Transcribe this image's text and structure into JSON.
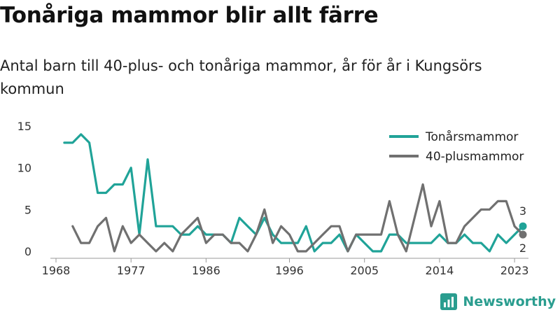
{
  "title": "Tonåriga mammor blir allt färre",
  "subtitle": "Antal barn till 40-plus- och tonåriga mammor, år för år i Kungsörs kommun",
  "brand": {
    "name": "Newsworthy",
    "color": "#2a9d8f"
  },
  "chart_data": {
    "type": "line",
    "xlabel": "",
    "ylabel": "",
    "xlim": [
      1968,
      2024
    ],
    "ylim": [
      0,
      15
    ],
    "x_ticks": [
      1968,
      1977,
      1986,
      1996,
      2005,
      2014,
      2023
    ],
    "y_ticks": [
      0,
      5,
      10,
      15
    ],
    "grid": false,
    "legend_position": "top-right",
    "series": [
      {
        "name": "Tonårsmammor",
        "color": "#20a398",
        "x": [
          1969,
          1970,
          1971,
          1972,
          1973,
          1974,
          1975,
          1976,
          1977,
          1978,
          1979,
          1980,
          1981,
          1982,
          1983,
          1984,
          1985,
          1986,
          1987,
          1988,
          1989,
          1990,
          1991,
          1992,
          1993,
          1994,
          1995,
          1996,
          1997,
          1998,
          1999,
          2000,
          2001,
          2002,
          2003,
          2004,
          2005,
          2006,
          2007,
          2008,
          2009,
          2010,
          2011,
          2012,
          2013,
          2014,
          2015,
          2016,
          2017,
          2018,
          2019,
          2020,
          2021,
          2022,
          2023,
          2024
        ],
        "values": [
          13,
          13,
          14,
          13,
          7,
          7,
          8,
          8,
          10,
          2,
          11,
          3,
          3,
          3,
          2,
          2,
          3,
          2,
          2,
          2,
          1,
          4,
          3,
          2,
          4,
          2,
          1,
          1,
          1,
          3,
          0,
          1,
          1,
          2,
          0,
          2,
          1,
          0,
          0,
          2,
          2,
          1,
          1,
          1,
          1,
          2,
          1,
          1,
          2,
          1,
          1,
          0,
          2,
          1,
          2,
          3
        ],
        "end_label": "3"
      },
      {
        "name": "40-plusmammor",
        "color": "#707070",
        "x": [
          1970,
          1971,
          1972,
          1973,
          1974,
          1975,
          1976,
          1977,
          1978,
          1979,
          1980,
          1981,
          1982,
          1983,
          1984,
          1985,
          1986,
          1987,
          1988,
          1989,
          1990,
          1991,
          1992,
          1993,
          1994,
          1995,
          1996,
          1997,
          1998,
          1999,
          2000,
          2001,
          2002,
          2003,
          2004,
          2005,
          2006,
          2007,
          2008,
          2009,
          2010,
          2011,
          2012,
          2013,
          2014,
          2015,
          2016,
          2017,
          2018,
          2019,
          2020,
          2021,
          2022,
          2023,
          2024
        ],
        "values": [
          3,
          1,
          1,
          3,
          4,
          0,
          3,
          1,
          2,
          1,
          0,
          1,
          0,
          2,
          3,
          4,
          1,
          2,
          2,
          1,
          1,
          0,
          2,
          5,
          1,
          3,
          2,
          0,
          0,
          1,
          2,
          3,
          3,
          0,
          2,
          2,
          2,
          2,
          6,
          2,
          0,
          4,
          8,
          3,
          6,
          1,
          1,
          3,
          4,
          5,
          5,
          6,
          6,
          3,
          2
        ],
        "end_label": "2"
      }
    ]
  }
}
